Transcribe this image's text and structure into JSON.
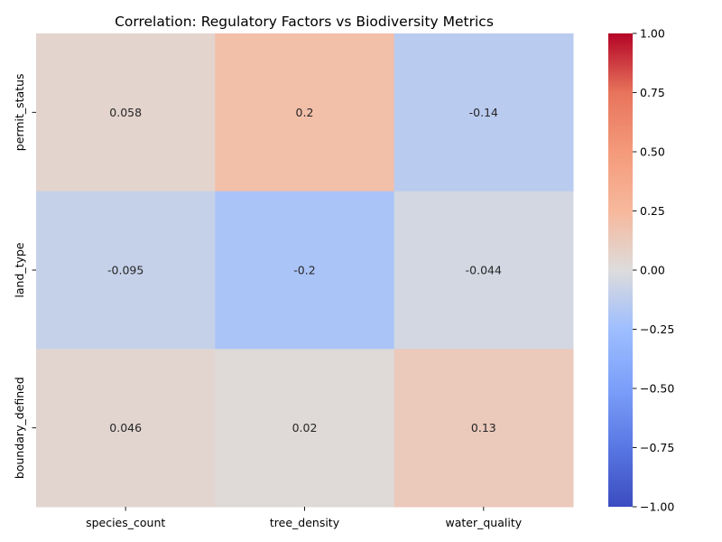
{
  "chart_data": {
    "type": "heatmap",
    "title": "Correlation: Regulatory Factors vs Biodiversity Metrics",
    "xlabel": "",
    "ylabel": "",
    "x_categories": [
      "species_count",
      "tree_density",
      "water_quality"
    ],
    "y_categories": [
      "permit_status",
      "land_type",
      "boundary_defined"
    ],
    "values": [
      [
        0.058,
        0.2,
        -0.14
      ],
      [
        -0.095,
        -0.2,
        -0.044
      ],
      [
        0.046,
        0.02,
        0.13
      ]
    ],
    "value_labels": [
      [
        "0.058",
        "0.2",
        "-0.14"
      ],
      [
        "-0.095",
        "-0.2",
        "-0.044"
      ],
      [
        "0.046",
        "0.02",
        "0.13"
      ]
    ],
    "colormap": "coolwarm",
    "vmin": -1.0,
    "vmax": 1.0,
    "colorbar_ticks": [
      1.0,
      0.75,
      0.5,
      0.25,
      0.0,
      -0.25,
      -0.5,
      -0.75,
      -1.0
    ],
    "colorbar_tick_labels": [
      "1.00",
      "0.75",
      "0.50",
      "0.25",
      "0.00",
      "−0.25",
      "−0.50",
      "−0.75",
      "−1.00"
    ]
  }
}
